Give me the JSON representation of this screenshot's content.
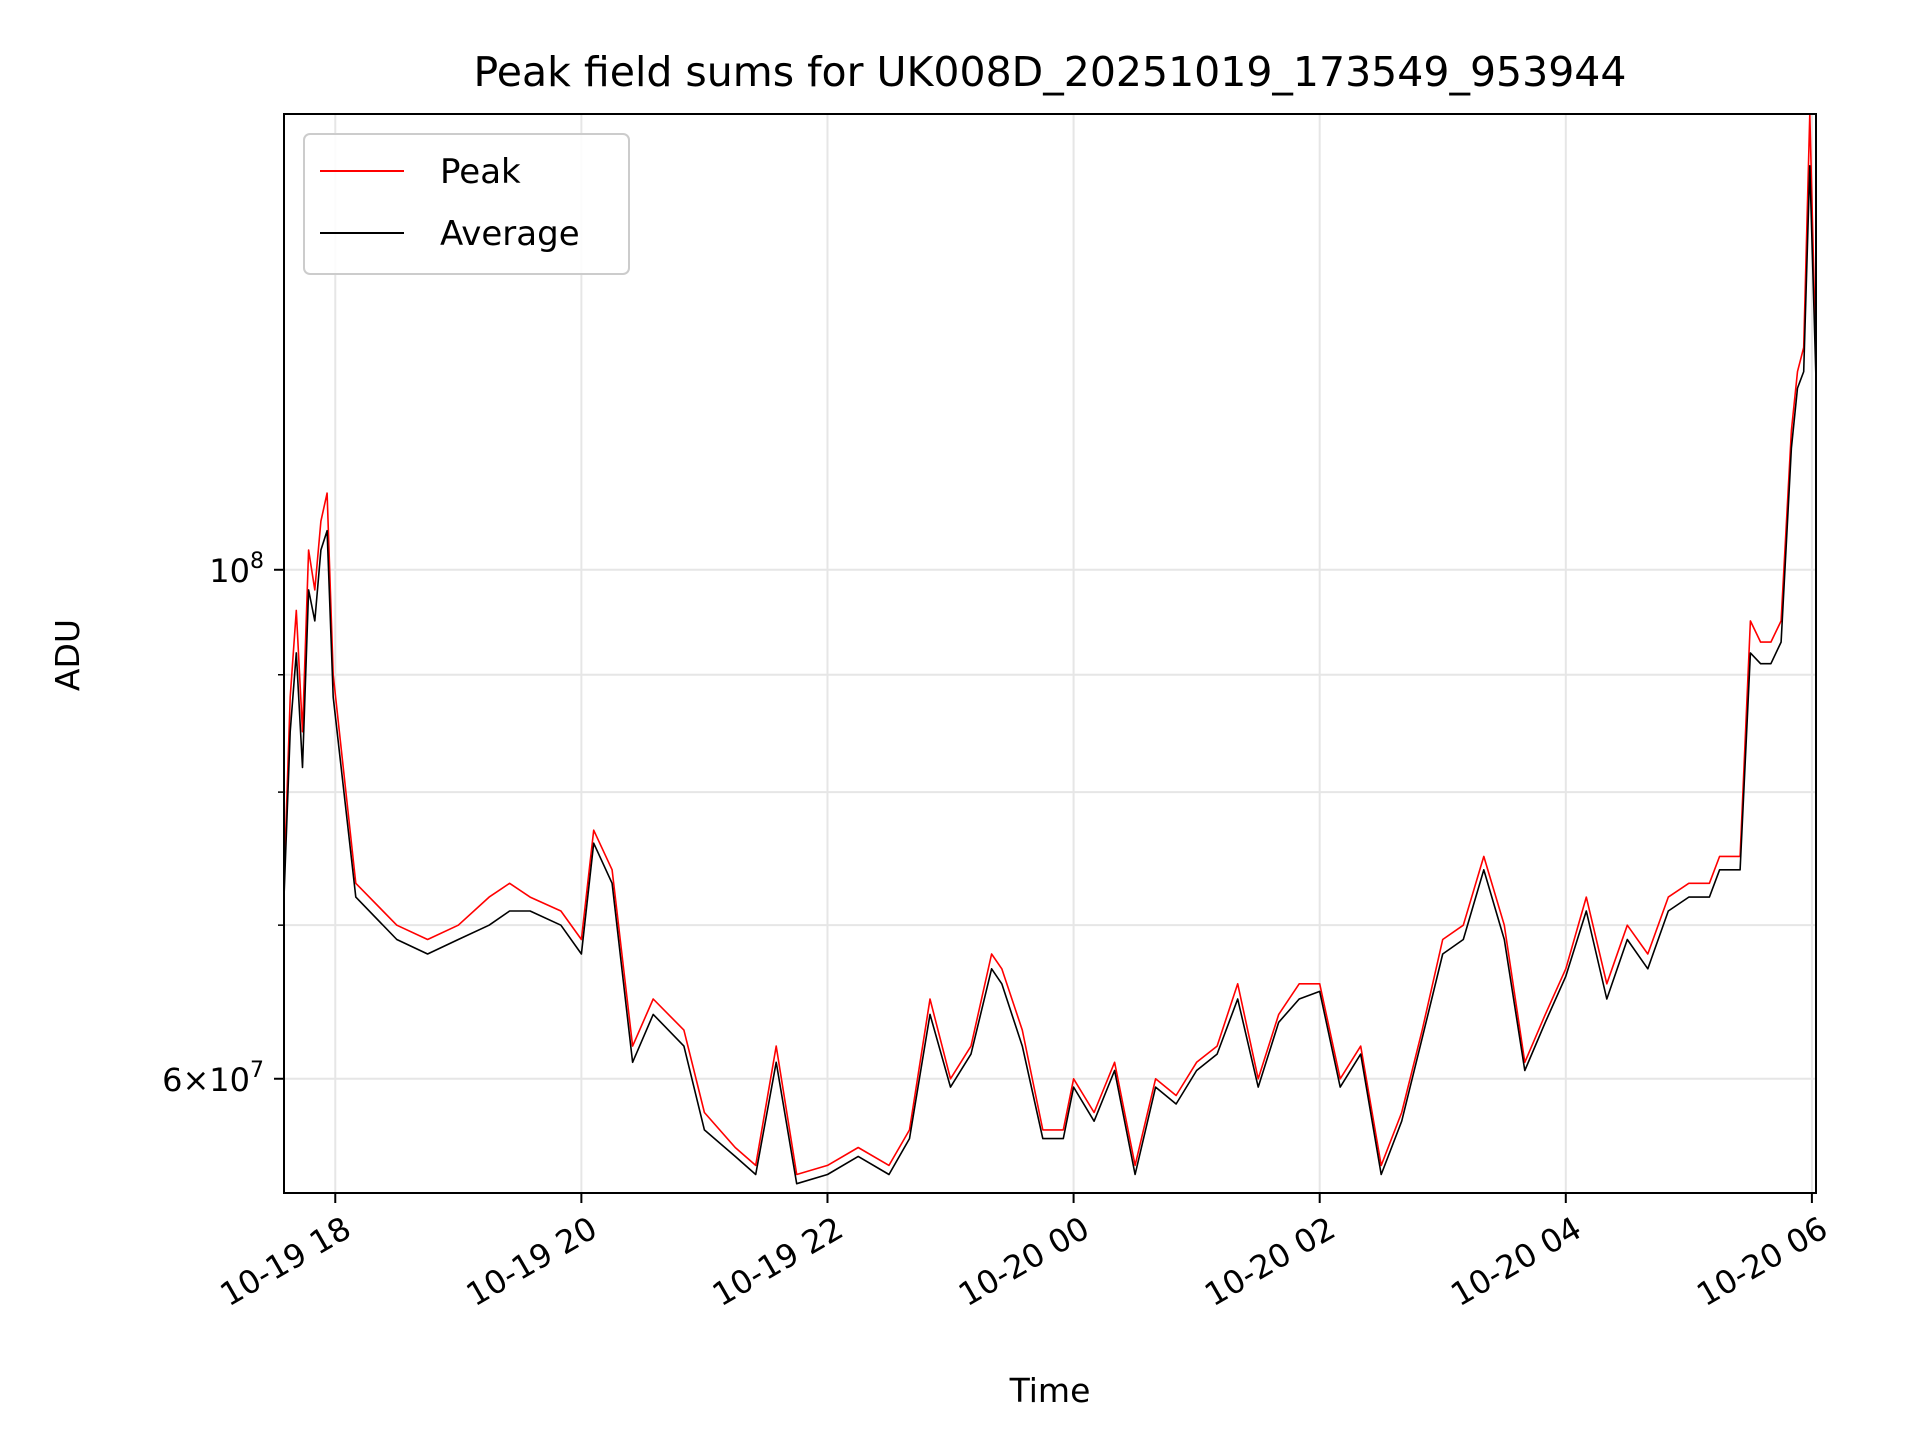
{
  "chart_data": {
    "type": "line",
    "title": "Peak field sums for UK008D_20251019_173549_953944",
    "xlabel": "Time",
    "ylabel": "ADU",
    "yscale": "log",
    "grid": true,
    "legend_position": "top-left",
    "x_range": [
      "2025-10-19 17:35",
      "2025-10-20 06:02"
    ],
    "ylim": [
      53500000,
      158000000
    ],
    "x_ticks": [
      "10-19 18",
      "10-19 20",
      "10-19 22",
      "10-20 00",
      "10-20 02",
      "10-20 04",
      "10-20 06"
    ],
    "y_ticks": [
      {
        "value": 100000000,
        "base": "10",
        "exp": "8",
        "mantissa": ""
      },
      {
        "value": 60000000,
        "base": "10",
        "exp": "7",
        "mantissa": "6×"
      }
    ],
    "series": [
      {
        "name": "Peak",
        "color": "#ff0000",
        "x": [
          "2025-10-19 17:35",
          "2025-10-19 17:38",
          "2025-10-19 17:41",
          "2025-10-19 17:44",
          "2025-10-19 17:47",
          "2025-10-19 17:50",
          "2025-10-19 17:53",
          "2025-10-19 17:56",
          "2025-10-19 17:59",
          "2025-10-19 18:10",
          "2025-10-19 18:30",
          "2025-10-19 18:45",
          "2025-10-19 19:00",
          "2025-10-19 19:15",
          "2025-10-19 19:25",
          "2025-10-19 19:35",
          "2025-10-19 19:50",
          "2025-10-19 20:00",
          "2025-10-19 20:06",
          "2025-10-19 20:15",
          "2025-10-19 20:25",
          "2025-10-19 20:35",
          "2025-10-19 20:50",
          "2025-10-19 21:00",
          "2025-10-19 21:15",
          "2025-10-19 21:25",
          "2025-10-19 21:35",
          "2025-10-19 21:45",
          "2025-10-19 22:00",
          "2025-10-19 22:15",
          "2025-10-19 22:30",
          "2025-10-19 22:40",
          "2025-10-19 22:50",
          "2025-10-19 23:00",
          "2025-10-19 23:10",
          "2025-10-19 23:20",
          "2025-10-19 23:25",
          "2025-10-19 23:35",
          "2025-10-19 23:45",
          "2025-10-19 23:55",
          "2025-10-20 00:00",
          "2025-10-20 00:10",
          "2025-10-20 00:20",
          "2025-10-20 00:30",
          "2025-10-20 00:40",
          "2025-10-20 00:50",
          "2025-10-20 01:00",
          "2025-10-20 01:10",
          "2025-10-20 01:20",
          "2025-10-20 01:30",
          "2025-10-20 01:40",
          "2025-10-20 01:50",
          "2025-10-20 02:00",
          "2025-10-20 02:10",
          "2025-10-20 02:20",
          "2025-10-20 02:30",
          "2025-10-20 02:40",
          "2025-10-20 02:50",
          "2025-10-20 03:00",
          "2025-10-20 03:10",
          "2025-10-20 03:20",
          "2025-10-20 03:30",
          "2025-10-20 03:40",
          "2025-10-20 03:50",
          "2025-10-20 04:00",
          "2025-10-20 04:10",
          "2025-10-20 04:20",
          "2025-10-20 04:30",
          "2025-10-20 04:40",
          "2025-10-20 04:50",
          "2025-10-20 05:00",
          "2025-10-20 05:10",
          "2025-10-20 05:15",
          "2025-10-20 05:20",
          "2025-10-20 05:25",
          "2025-10-20 05:30",
          "2025-10-20 05:35",
          "2025-10-20 05:40",
          "2025-10-20 05:45",
          "2025-10-20 05:50",
          "2025-10-20 05:53",
          "2025-10-20 05:56",
          "2025-10-20 05:59",
          "2025-10-20 06:02"
        ],
        "y": [
          73000000,
          88000000,
          96000000,
          85000000,
          102000000,
          98000000,
          105000000,
          108000000,
          90000000,
          73000000,
          70000000,
          69000000,
          70000000,
          72000000,
          73000000,
          72000000,
          71000000,
          69000000,
          77000000,
          74000000,
          62000000,
          65000000,
          63000000,
          58000000,
          56000000,
          55000000,
          62000000,
          54500000,
          55000000,
          56000000,
          55000000,
          57000000,
          65000000,
          60000000,
          62000000,
          68000000,
          67000000,
          63000000,
          57000000,
          57000000,
          60000000,
          58000000,
          61000000,
          55000000,
          60000000,
          59000000,
          61000000,
          62000000,
          66000000,
          60000000,
          64000000,
          66000000,
          66000000,
          60000000,
          62000000,
          55000000,
          58000000,
          63000000,
          69000000,
          70000000,
          75000000,
          70000000,
          61000000,
          64000000,
          67000000,
          72000000,
          66000000,
          70000000,
          68000000,
          72000000,
          73000000,
          73000000,
          75000000,
          75000000,
          75000000,
          95000000,
          93000000,
          93000000,
          95000000,
          115000000,
          122000000,
          125000000,
          158000000,
          123000000
        ]
      },
      {
        "name": "Average",
        "color": "#000000",
        "x": [
          "2025-10-19 17:35",
          "2025-10-19 17:38",
          "2025-10-19 17:41",
          "2025-10-19 17:44",
          "2025-10-19 17:47",
          "2025-10-19 17:50",
          "2025-10-19 17:53",
          "2025-10-19 17:56",
          "2025-10-19 17:59",
          "2025-10-19 18:10",
          "2025-10-19 18:30",
          "2025-10-19 18:45",
          "2025-10-19 19:00",
          "2025-10-19 19:15",
          "2025-10-19 19:25",
          "2025-10-19 19:35",
          "2025-10-19 19:50",
          "2025-10-19 20:00",
          "2025-10-19 20:06",
          "2025-10-19 20:15",
          "2025-10-19 20:25",
          "2025-10-19 20:35",
          "2025-10-19 20:50",
          "2025-10-19 21:00",
          "2025-10-19 21:15",
          "2025-10-19 21:25",
          "2025-10-19 21:35",
          "2025-10-19 21:45",
          "2025-10-19 22:00",
          "2025-10-19 22:15",
          "2025-10-19 22:30",
          "2025-10-19 22:40",
          "2025-10-19 22:50",
          "2025-10-19 23:00",
          "2025-10-19 23:10",
          "2025-10-19 23:20",
          "2025-10-19 23:25",
          "2025-10-19 23:35",
          "2025-10-19 23:45",
          "2025-10-19 23:55",
          "2025-10-20 00:00",
          "2025-10-20 00:10",
          "2025-10-20 00:20",
          "2025-10-20 00:30",
          "2025-10-20 00:40",
          "2025-10-20 00:50",
          "2025-10-20 01:00",
          "2025-10-20 01:10",
          "2025-10-20 01:20",
          "2025-10-20 01:30",
          "2025-10-20 01:40",
          "2025-10-20 01:50",
          "2025-10-20 02:00",
          "2025-10-20 02:10",
          "2025-10-20 02:20",
          "2025-10-20 02:30",
          "2025-10-20 02:40",
          "2025-10-20 02:50",
          "2025-10-20 03:00",
          "2025-10-20 03:10",
          "2025-10-20 03:20",
          "2025-10-20 03:30",
          "2025-10-20 03:40",
          "2025-10-20 03:50",
          "2025-10-20 04:00",
          "2025-10-20 04:10",
          "2025-10-20 04:20",
          "2025-10-20 04:30",
          "2025-10-20 04:40",
          "2025-10-20 04:50",
          "2025-10-20 05:00",
          "2025-10-20 05:10",
          "2025-10-20 05:15",
          "2025-10-20 05:20",
          "2025-10-20 05:25",
          "2025-10-20 05:30",
          "2025-10-20 05:35",
          "2025-10-20 05:40",
          "2025-10-20 05:45",
          "2025-10-20 05:50",
          "2025-10-20 05:53",
          "2025-10-20 05:56",
          "2025-10-20 05:59",
          "2025-10-20 06:02"
        ],
        "y": [
          72000000,
          85000000,
          92000000,
          82000000,
          98000000,
          95000000,
          102000000,
          104000000,
          88000000,
          72000000,
          69000000,
          68000000,
          69000000,
          70000000,
          71000000,
          71000000,
          70000000,
          68000000,
          76000000,
          73000000,
          61000000,
          64000000,
          62000000,
          57000000,
          55500000,
          54500000,
          61000000,
          54000000,
          54500000,
          55500000,
          54500000,
          56500000,
          64000000,
          59500000,
          61500000,
          67000000,
          66000000,
          62000000,
          56500000,
          56500000,
          59500000,
          57500000,
          60500000,
          54500000,
          59500000,
          58500000,
          60500000,
          61500000,
          65000000,
          59500000,
          63500000,
          65000000,
          65500000,
          59500000,
          61500000,
          54500000,
          57500000,
          62500000,
          68000000,
          69000000,
          74000000,
          69000000,
          60500000,
          63500000,
          66500000,
          71000000,
          65000000,
          69000000,
          67000000,
          71000000,
          72000000,
          72000000,
          74000000,
          74000000,
          74000000,
          92000000,
          91000000,
          91000000,
          93000000,
          113000000,
          120000000,
          122000000,
          150000000,
          121000000
        ]
      }
    ]
  }
}
